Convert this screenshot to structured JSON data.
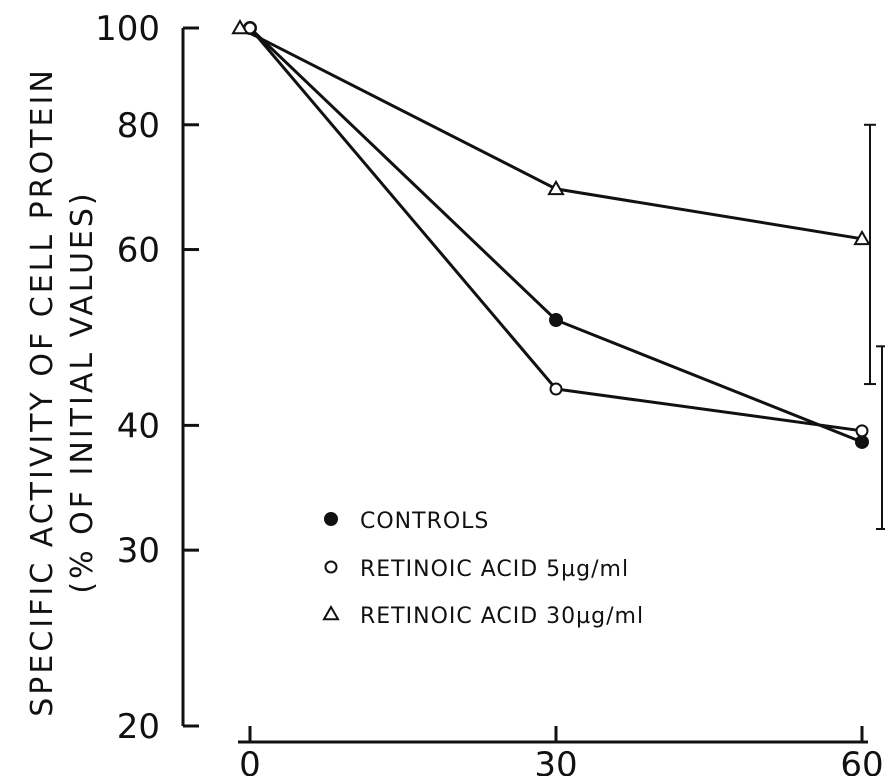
{
  "chart_data": {
    "type": "line",
    "y_scale": "log",
    "ylim": [
      20,
      100
    ],
    "xlim": [
      0,
      60
    ],
    "x_ticks": [
      "0",
      "30",
      "60"
    ],
    "y_ticks": [
      "100",
      "80",
      "60",
      "40",
      "30",
      "20"
    ],
    "ylabel_line1": "SPECIFIC ACTIVITY OF CELL PROTEIN",
    "ylabel_line2": "(% OF INITIAL VALUES)",
    "xlabel": "",
    "legend_position": "lower-left",
    "grid": false,
    "series": [
      {
        "name": "CONTROLS",
        "marker": "filled-circle",
        "x": [
          0,
          30,
          60
        ],
        "y": [
          100,
          51,
          38.5
        ]
      },
      {
        "name": "RETINOIC ACID 5µg/ml",
        "marker": "open-circle",
        "x": [
          0,
          30,
          60
        ],
        "y": [
          100,
          43.5,
          39.5
        ]
      },
      {
        "name": "RETINOIC ACID 30µg/ml",
        "marker": "open-triangle",
        "x": [
          0,
          30,
          60
        ],
        "y": [
          100,
          69,
          61.5
        ]
      }
    ],
    "error_bars": [
      {
        "series": "RETINOIC ACID 30µg/ml",
        "x": 60,
        "low": 44,
        "high": 80
      },
      {
        "series": "CONTROLS / RETINOIC ACID 5µg/ml",
        "x": 60,
        "low": 31.5,
        "high": 48
      }
    ]
  }
}
